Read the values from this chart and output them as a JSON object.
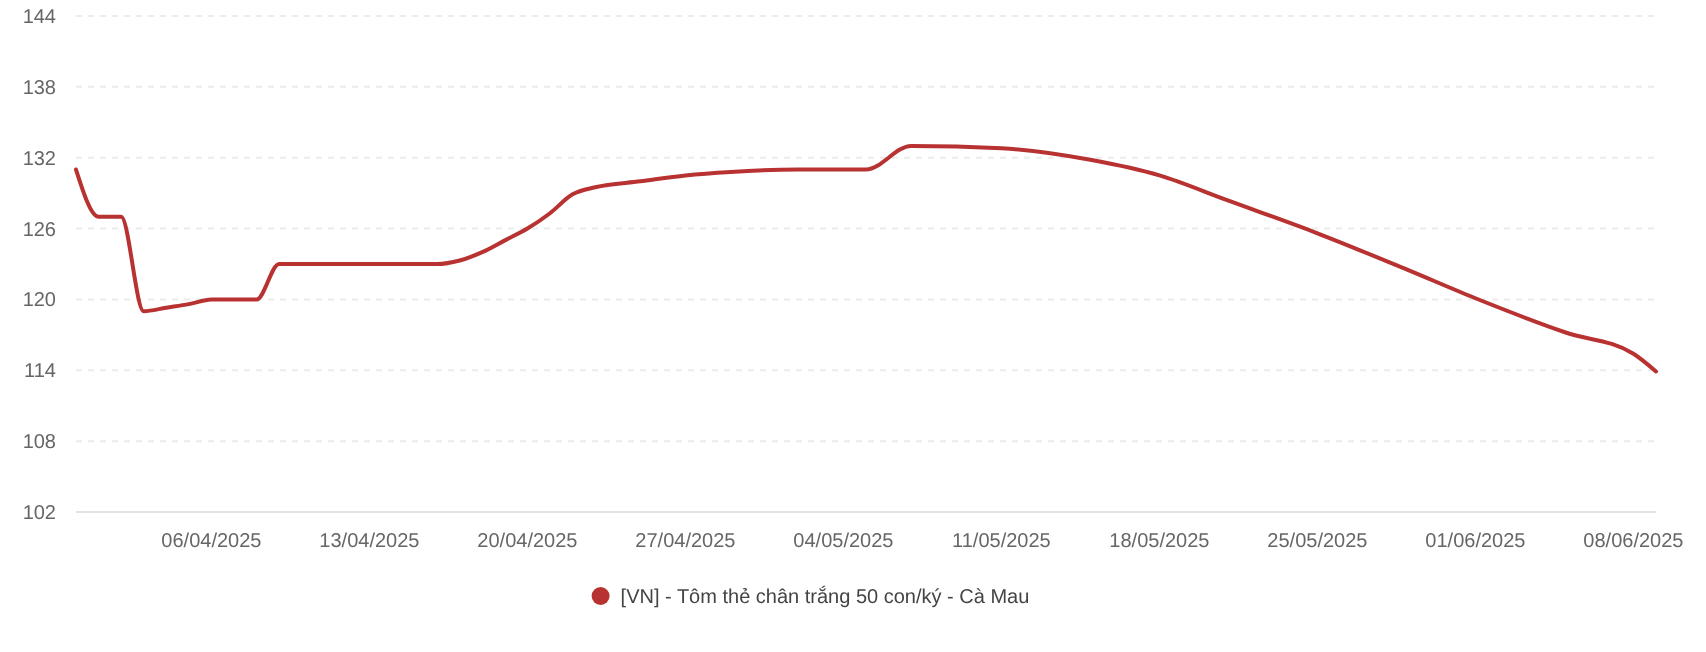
{
  "chart_data": {
    "type": "line",
    "x": [
      "2025-03-31",
      "2025-04-01",
      "2025-04-02",
      "2025-04-03",
      "2025-04-04",
      "2025-04-05",
      "2025-04-06",
      "2025-04-07",
      "2025-04-08",
      "2025-04-09",
      "2025-04-12",
      "2025-04-16",
      "2025-04-17",
      "2025-04-18",
      "2025-04-19",
      "2025-04-20",
      "2025-04-21",
      "2025-04-22",
      "2025-04-23",
      "2025-04-25",
      "2025-04-27",
      "2025-04-29",
      "2025-05-02",
      "2025-05-05",
      "2025-05-07",
      "2025-05-11",
      "2025-05-15",
      "2025-05-18",
      "2025-05-21",
      "2025-05-25",
      "2025-05-29",
      "2025-06-01",
      "2025-06-05",
      "2025-06-08",
      "2025-06-09"
    ],
    "series": [
      {
        "name": "[VN] - Tôm thẻ chân trắng 50 con/ký - Cà Mau",
        "color": "#b83232",
        "values": [
          131,
          127,
          127,
          119,
          119.3,
          119.6,
          120,
          120,
          120,
          123,
          123,
          123,
          123.3,
          124,
          125,
          126,
          127.3,
          128.9,
          129.5,
          130,
          130.5,
          130.8,
          131,
          131,
          133,
          132.8,
          131.8,
          130.5,
          128.4,
          125.6,
          122.5,
          120.1,
          117.2,
          115.4,
          113.9
        ]
      }
    ],
    "xlim": [
      "2025-03-31",
      "2025-06-09"
    ],
    "xticks": [
      {
        "value": "2025-04-06",
        "label": "06/04/2025"
      },
      {
        "value": "2025-04-13",
        "label": "13/04/2025"
      },
      {
        "value": "2025-04-20",
        "label": "20/04/2025"
      },
      {
        "value": "2025-04-27",
        "label": "27/04/2025"
      },
      {
        "value": "2025-05-04",
        "label": "04/05/2025"
      },
      {
        "value": "2025-05-11",
        "label": "11/05/2025"
      },
      {
        "value": "2025-05-18",
        "label": "18/05/2025"
      },
      {
        "value": "2025-05-25",
        "label": "25/05/2025"
      },
      {
        "value": "2025-06-01",
        "label": "01/06/2025"
      },
      {
        "value": "2025-06-08",
        "label": "08/06/2025"
      }
    ],
    "ylim": [
      102,
      144
    ],
    "yticks": [
      102,
      108,
      114,
      120,
      126,
      132,
      138,
      144
    ],
    "grid": "y",
    "legend": "bottom",
    "marker": "none",
    "line_style": "solid"
  }
}
